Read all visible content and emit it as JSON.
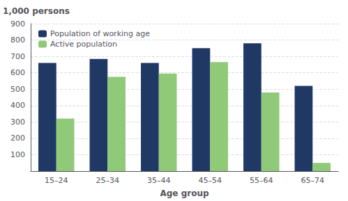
{
  "chart_data": {
    "type": "bar",
    "ylabel": "1,000 persons",
    "xlabel": "Age group",
    "categories": [
      "15–24",
      "25–34",
      "35–44",
      "45–54",
      "55–64",
      "65–74"
    ],
    "series": [
      {
        "name": "Population of working age",
        "color": "#1f3864",
        "values": [
          660,
          685,
          660,
          750,
          780,
          520
        ]
      },
      {
        "name": "Active population",
        "color": "#90c978",
        "values": [
          320,
          575,
          595,
          665,
          480,
          50
        ]
      }
    ],
    "ylim": [
      0,
      900
    ],
    "yticks": [
      100,
      200,
      300,
      400,
      500,
      600,
      700,
      800,
      900
    ],
    "grid": true,
    "legend": "upper left"
  }
}
